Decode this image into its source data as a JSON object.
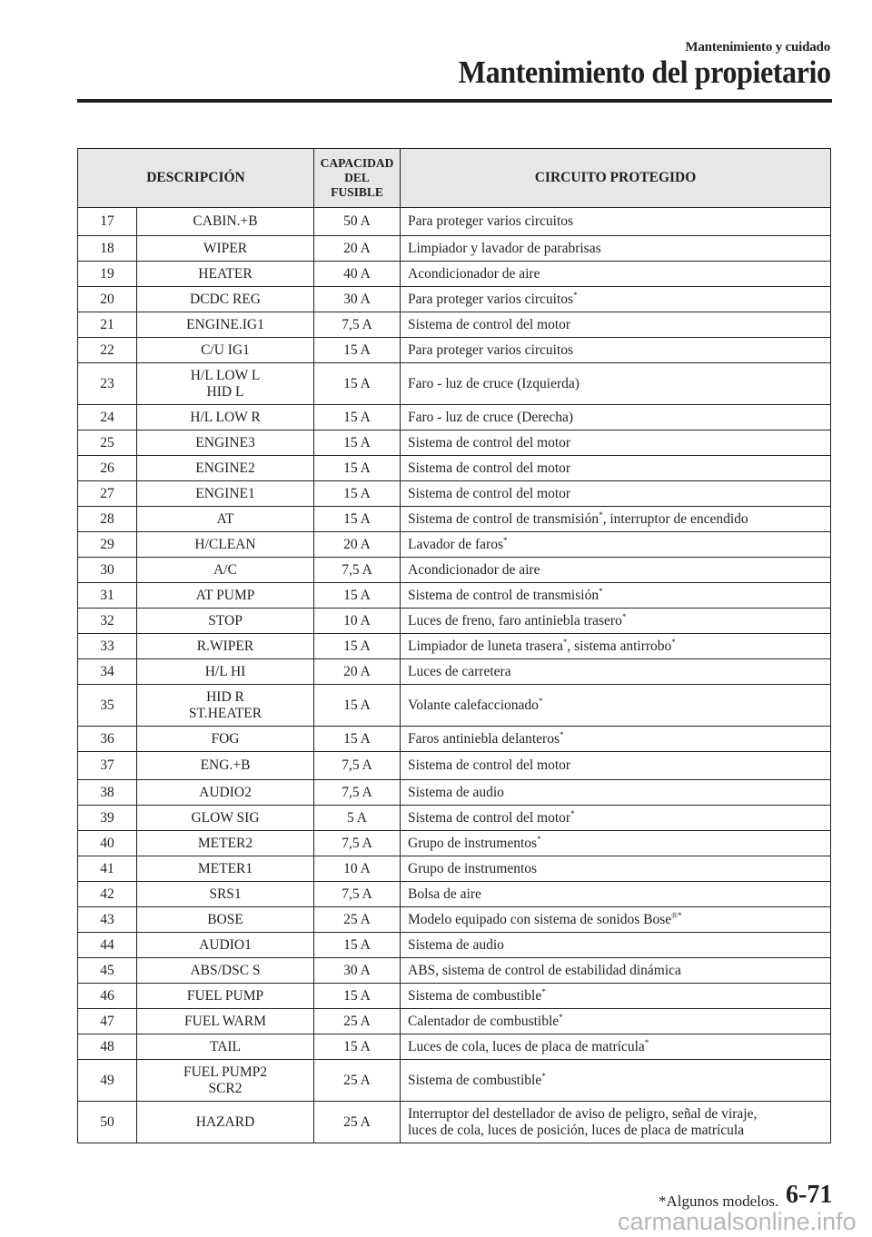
{
  "header": {
    "section": "Mantenimiento y cuidado",
    "title": "Mantenimiento del propietario"
  },
  "table": {
    "columns": [
      "DESCRIPCIÓN",
      "CAPACIDAD DEL FUSIBLE",
      "CIRCUITO PROTEGIDO"
    ],
    "capacity_lines": [
      "CAPACIDAD",
      "DEL",
      "FUSIBLE"
    ],
    "rows": [
      {
        "n": "17",
        "d": [
          "CABIN.+B"
        ],
        "a": "50 A",
        "c": [
          {
            "t": "Para proteger varios circuitos"
          }
        ],
        "h": "m"
      },
      {
        "n": "18",
        "d": [
          "WIPER"
        ],
        "a": "20 A",
        "c": [
          {
            "t": "Limpiador y lavador de parabrisas"
          }
        ]
      },
      {
        "n": "19",
        "d": [
          "HEATER"
        ],
        "a": "40 A",
        "c": [
          {
            "t": "Acondicionador de aire"
          }
        ]
      },
      {
        "n": "20",
        "d": [
          "DCDC REG"
        ],
        "a": "30 A",
        "c": [
          {
            "t": "Para proteger varios circuitos"
          },
          {
            "s": "*"
          }
        ]
      },
      {
        "n": "21",
        "d": [
          "ENGINE.IG1"
        ],
        "a": "7,5 A",
        "c": [
          {
            "t": "Sistema de control del motor"
          }
        ]
      },
      {
        "n": "22",
        "d": [
          "C/U IG1"
        ],
        "a": "15 A",
        "c": [
          {
            "t": "Para proteger varios circuitos"
          }
        ]
      },
      {
        "n": "23",
        "d": [
          "H/L LOW L",
          "HID L"
        ],
        "a": "15 A",
        "c": [
          {
            "t": "Faro - luz de cruce (Izquierda)"
          }
        ],
        "h": "t"
      },
      {
        "n": "24",
        "d": [
          "H/L LOW R"
        ],
        "a": "15 A",
        "c": [
          {
            "t": "Faro - luz de cruce (Derecha)"
          }
        ]
      },
      {
        "n": "25",
        "d": [
          "ENGINE3"
        ],
        "a": "15 A",
        "c": [
          {
            "t": "Sistema de control del motor"
          }
        ]
      },
      {
        "n": "26",
        "d": [
          "ENGINE2"
        ],
        "a": "15 A",
        "c": [
          {
            "t": "Sistema de control del motor"
          }
        ]
      },
      {
        "n": "27",
        "d": [
          "ENGINE1"
        ],
        "a": "15 A",
        "c": [
          {
            "t": "Sistema de control del motor"
          }
        ]
      },
      {
        "n": "28",
        "d": [
          "AT"
        ],
        "a": "15 A",
        "c": [
          {
            "t": "Sistema de control de transmisión"
          },
          {
            "s": "*"
          },
          {
            "t": ", interruptor de encendido"
          }
        ]
      },
      {
        "n": "29",
        "d": [
          "H/CLEAN"
        ],
        "a": "20 A",
        "c": [
          {
            "t": "Lavador de faros"
          },
          {
            "s": "*"
          }
        ]
      },
      {
        "n": "30",
        "d": [
          "A/C"
        ],
        "a": "7,5 A",
        "c": [
          {
            "t": "Acondicionador de aire"
          }
        ]
      },
      {
        "n": "31",
        "d": [
          "AT PUMP"
        ],
        "a": "15 A",
        "c": [
          {
            "t": "Sistema de control de transmisión"
          },
          {
            "s": "*"
          }
        ]
      },
      {
        "n": "32",
        "d": [
          "STOP"
        ],
        "a": "10 A",
        "c": [
          {
            "t": "Luces de freno, faro antiniebla trasero"
          },
          {
            "s": "*"
          }
        ]
      },
      {
        "n": "33",
        "d": [
          "R.WIPER"
        ],
        "a": "15 A",
        "c": [
          {
            "t": "Limpiador de luneta trasera"
          },
          {
            "s": "*"
          },
          {
            "t": ", sistema antirrobo"
          },
          {
            "s": "*"
          }
        ]
      },
      {
        "n": "34",
        "d": [
          "H/L HI"
        ],
        "a": "20 A",
        "c": [
          {
            "t": "Luces de carretera"
          }
        ]
      },
      {
        "n": "35",
        "d": [
          "HID R",
          "ST.HEATER"
        ],
        "a": "15 A",
        "c": [
          {
            "t": "Volante calefaccionado"
          },
          {
            "s": "*"
          }
        ],
        "h": "t"
      },
      {
        "n": "36",
        "d": [
          "FOG"
        ],
        "a": "15 A",
        "c": [
          {
            "t": "Faros antiniebla delanteros"
          },
          {
            "s": "*"
          }
        ]
      },
      {
        "n": "37",
        "d": [
          "ENG.+B"
        ],
        "a": "7,5 A",
        "c": [
          {
            "t": "Sistema de control del motor"
          }
        ],
        "h": "m"
      },
      {
        "n": "38",
        "d": [
          "AUDIO2"
        ],
        "a": "7,5 A",
        "c": [
          {
            "t": "Sistema de audio"
          }
        ]
      },
      {
        "n": "39",
        "d": [
          "GLOW SIG"
        ],
        "a": "5 A",
        "c": [
          {
            "t": "Sistema de control del motor"
          },
          {
            "s": "*"
          }
        ]
      },
      {
        "n": "40",
        "d": [
          "METER2"
        ],
        "a": "7,5 A",
        "c": [
          {
            "t": "Grupo de instrumentos"
          },
          {
            "s": "*"
          }
        ]
      },
      {
        "n": "41",
        "d": [
          "METER1"
        ],
        "a": "10 A",
        "c": [
          {
            "t": "Grupo de instrumentos"
          }
        ]
      },
      {
        "n": "42",
        "d": [
          "SRS1"
        ],
        "a": "7,5 A",
        "c": [
          {
            "t": "Bolsa de aire"
          }
        ]
      },
      {
        "n": "43",
        "d": [
          "BOSE"
        ],
        "a": "25 A",
        "c": [
          {
            "t": "Modelo equipado con sistema de sonidos Bose"
          },
          {
            "s": "®*"
          }
        ]
      },
      {
        "n": "44",
        "d": [
          "AUDIO1"
        ],
        "a": "15 A",
        "c": [
          {
            "t": "Sistema de audio"
          }
        ]
      },
      {
        "n": "45",
        "d": [
          "ABS/DSC S"
        ],
        "a": "30 A",
        "c": [
          {
            "t": "ABS, sistema de control de estabilidad dinámica"
          }
        ]
      },
      {
        "n": "46",
        "d": [
          "FUEL PUMP"
        ],
        "a": "15 A",
        "c": [
          {
            "t": "Sistema de combustible"
          },
          {
            "s": "*"
          }
        ]
      },
      {
        "n": "47",
        "d": [
          "FUEL WARM"
        ],
        "a": "25 A",
        "c": [
          {
            "t": "Calentador de combustible"
          },
          {
            "s": "*"
          }
        ]
      },
      {
        "n": "48",
        "d": [
          "TAIL"
        ],
        "a": "15 A",
        "c": [
          {
            "t": "Luces de cola, luces de placa de matrícula"
          },
          {
            "s": "*"
          }
        ]
      },
      {
        "n": "49",
        "d": [
          "FUEL PUMP2",
          "SCR2"
        ],
        "a": "25 A",
        "c": [
          {
            "t": "Sistema de combustible"
          },
          {
            "s": "*"
          }
        ],
        "h": "t"
      },
      {
        "n": "50",
        "d": [
          "HAZARD"
        ],
        "a": "25 A",
        "c": [
          {
            "t": "Interruptor del destellador de aviso de peligro, señal de viraje,"
          },
          {
            "br": true
          },
          {
            "t": "luces de cola, luces de posición, luces de placa de matrícula"
          }
        ],
        "h": "t"
      }
    ]
  },
  "footer": {
    "note": "*Algunos modelos.",
    "page": "6-71",
    "watermark": "carmanualsonline.info"
  }
}
